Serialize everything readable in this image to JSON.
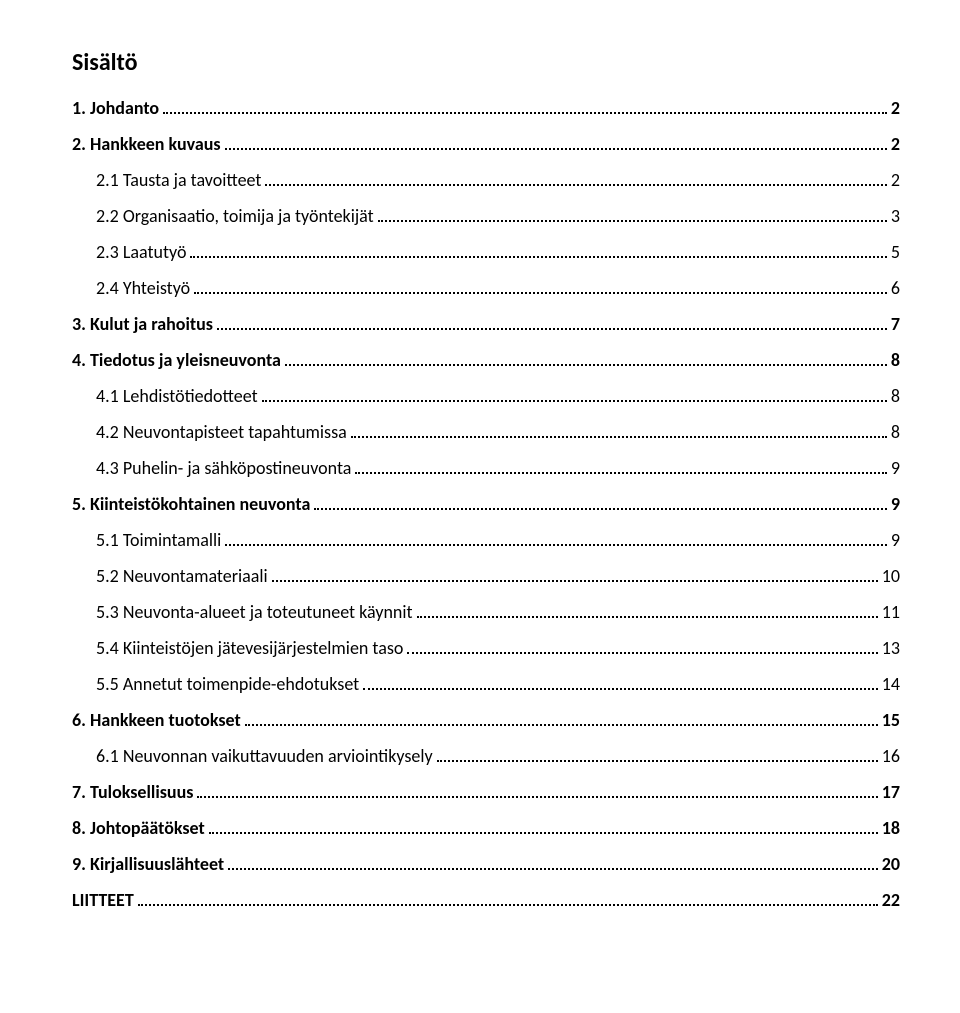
{
  "title": "Sisältö",
  "entries": [
    {
      "label": "1. Johdanto",
      "page": "2",
      "bold": true,
      "indent": 0
    },
    {
      "label": "2. Hankkeen kuvaus",
      "page": "2",
      "bold": true,
      "indent": 0
    },
    {
      "label": "2.1 Tausta ja tavoitteet",
      "page": "2",
      "bold": false,
      "indent": 1
    },
    {
      "label": "2.2 Organisaatio, toimija ja työntekijät",
      "page": "3",
      "bold": false,
      "indent": 1
    },
    {
      "label": "2.3 Laatutyö",
      "page": "5",
      "bold": false,
      "indent": 1
    },
    {
      "label": "2.4 Yhteistyö",
      "page": "6",
      "bold": false,
      "indent": 1
    },
    {
      "label": "3. Kulut ja rahoitus",
      "page": "7",
      "bold": true,
      "indent": 0
    },
    {
      "label": "4. Tiedotus ja yleisneuvonta",
      "page": "8",
      "bold": true,
      "indent": 0
    },
    {
      "label": "4.1 Lehdistötiedotteet",
      "page": "8",
      "bold": false,
      "indent": 1
    },
    {
      "label": "4.2 Neuvontapisteet tapahtumissa",
      "page": "8",
      "bold": false,
      "indent": 1
    },
    {
      "label": "4.3 Puhelin- ja sähköpostineuvonta",
      "page": "9",
      "bold": false,
      "indent": 1
    },
    {
      "label": "5. Kiinteistökohtainen neuvonta",
      "page": "9",
      "bold": true,
      "indent": 0
    },
    {
      "label": "5.1 Toimintamalli",
      "page": "9",
      "bold": false,
      "indent": 1
    },
    {
      "label": "5.2 Neuvontamateriaali",
      "page": "10",
      "bold": false,
      "indent": 1
    },
    {
      "label": "5.3 Neuvonta-alueet ja toteutuneet käynnit",
      "page": "11",
      "bold": false,
      "indent": 1
    },
    {
      "label": "5.4 Kiinteistöjen jätevesijärjestelmien taso",
      "page": "13",
      "bold": false,
      "indent": 1
    },
    {
      "label": "5.5 Annetut toimenpide-ehdotukset",
      "page": "14",
      "bold": false,
      "indent": 1
    },
    {
      "label": "6. Hankkeen tuotokset",
      "page": "15",
      "bold": true,
      "indent": 0
    },
    {
      "label": "6.1 Neuvonnan vaikuttavuuden arviointikysely",
      "page": "16",
      "bold": false,
      "indent": 1
    },
    {
      "label": "7. Tuloksellisuus",
      "page": "17",
      "bold": true,
      "indent": 0
    },
    {
      "label": "8. Johtopäätökset",
      "page": "18",
      "bold": true,
      "indent": 0
    },
    {
      "label": "9. Kirjallisuuslähteet",
      "page": "20",
      "bold": true,
      "indent": 0
    },
    {
      "label": "LIITTEET",
      "page": "22",
      "bold": true,
      "indent": 0
    }
  ]
}
